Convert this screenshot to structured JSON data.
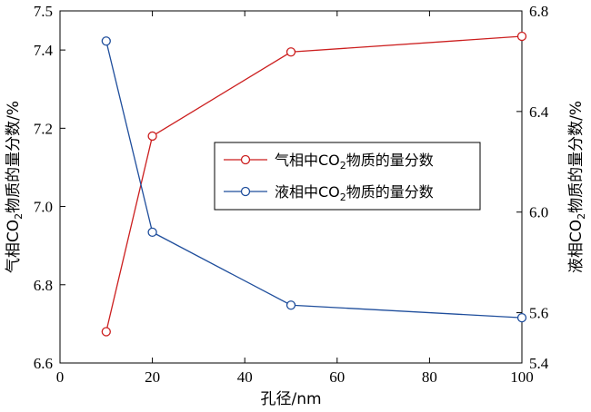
{
  "chart_data": {
    "type": "line",
    "xlabel": "孔径/nm",
    "ylabel_left": {
      "before": "气相CO",
      "sub": "2",
      "after": "物质的量分数/%"
    },
    "ylabel_right": {
      "before": "液相CO",
      "sub": "2",
      "after": "物质的量分数/%"
    },
    "xlim": [
      0,
      100
    ],
    "ylim_left": [
      6.6,
      7.5
    ],
    "ylim_right": [
      5.4,
      6.8
    ],
    "x_ticks": [
      "0",
      "20",
      "40",
      "60",
      "80",
      "100"
    ],
    "y_left_ticks": [
      "6.6",
      "6.8",
      "7.0",
      "7.2",
      "7.4",
      "7.5"
    ],
    "y_right_ticks": [
      "5.4",
      "5.6",
      "6.0",
      "6.4",
      "6.8"
    ],
    "grid": false,
    "legend_position": "center-right",
    "series": [
      {
        "name": {
          "before": "气相中CO",
          "sub": "2",
          "after": "物质的量分数"
        },
        "axis": "left",
        "color": "#cc1f1f",
        "marker": "open-circle",
        "x": [
          10,
          20,
          50,
          100
        ],
        "y": [
          6.68,
          7.18,
          7.395,
          7.435
        ]
      },
      {
        "name": {
          "before": "液相中CO",
          "sub": "2",
          "after": "物质的量分数"
        },
        "axis": "right",
        "color": "#1f4e9c",
        "marker": "open-circle",
        "x": [
          10,
          20,
          50,
          100
        ],
        "y": [
          6.68,
          5.92,
          5.63,
          5.58
        ]
      }
    ]
  }
}
